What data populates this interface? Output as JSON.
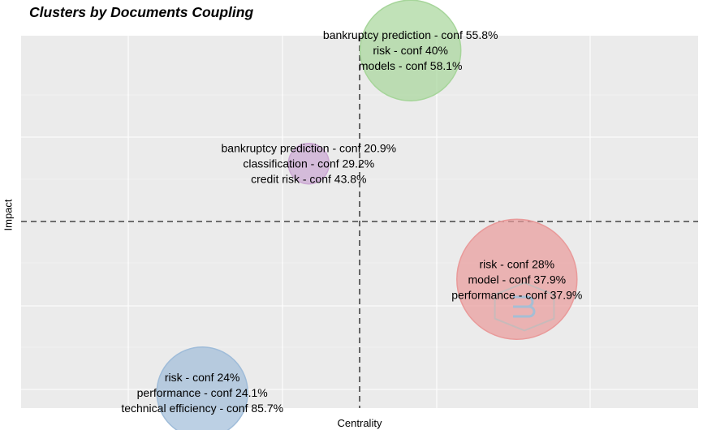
{
  "chart_data": {
    "type": "scatter",
    "title": "Clusters by Documents Coupling",
    "xlabel": "Centrality",
    "ylabel": "Impact",
    "grid": true,
    "reference_lines": {
      "x": 0.0,
      "y": 0.0
    },
    "xlim": [
      -1.0,
      1.0
    ],
    "ylim": [
      -1.0,
      1.0
    ],
    "clusters": [
      {
        "labels": [
          "bankruptcy prediction - conf 55.8%",
          "risk - conf 40%",
          "models - conf 58.1%"
        ],
        "x": 0.22,
        "y": 0.68,
        "size": 62,
        "color": "#a6d59a"
      },
      {
        "labels": [
          "bankruptcy prediction - conf 20.9%",
          "classification - conf 29.2%",
          "credit risk - conf 43.8%"
        ],
        "x": -0.22,
        "y": 0.23,
        "size": 25,
        "color": "#cba7d3"
      },
      {
        "labels": [
          "risk - conf 28%",
          "model - conf 37.9%",
          "performance - conf 37.9%"
        ],
        "x": 0.68,
        "y": -0.23,
        "size": 74,
        "color": "#e99a9a"
      },
      {
        "labels": [
          "risk - conf 24%",
          "performance - conf 24.1%",
          "technical efficiency - conf 85.7%"
        ],
        "x": -0.68,
        "y": -0.68,
        "size": 56,
        "color": "#9fbcd9"
      }
    ]
  }
}
